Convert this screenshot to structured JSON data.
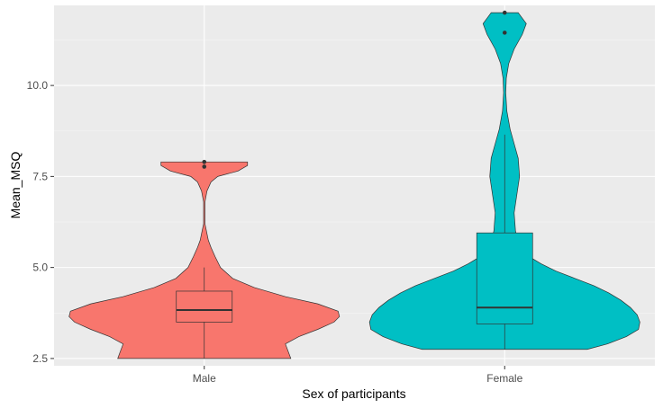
{
  "chart_data": {
    "type": "violin",
    "xlabel": "Sex of participants",
    "ylabel": "Mean_MSQ",
    "ylim": [
      2.3,
      12.2
    ],
    "y_ticks": [
      2.5,
      5.0,
      7.5,
      10.0
    ],
    "y_tick_labels": [
      "2.5",
      "5.0",
      "7.5",
      "10.0"
    ],
    "grid": true,
    "legend": "none",
    "categories": [
      "Male",
      "Female"
    ],
    "series": [
      {
        "name": "Male",
        "color": "#F8766D",
        "box": {
          "min": 2.5,
          "q1": 3.5,
          "median": 3.83,
          "q3": 4.35,
          "whisker_high": 5.0
        },
        "outliers": [
          7.9,
          7.77
        ],
        "violin_profile": [
          [
            2.5,
            0.64
          ],
          [
            2.7,
            0.62
          ],
          [
            2.9,
            0.6
          ],
          [
            3.1,
            0.7
          ],
          [
            3.3,
            0.84
          ],
          [
            3.5,
            0.96
          ],
          [
            3.65,
            1.0
          ],
          [
            3.8,
            0.99
          ],
          [
            4.0,
            0.84
          ],
          [
            4.2,
            0.6
          ],
          [
            4.45,
            0.37
          ],
          [
            4.7,
            0.21
          ],
          [
            5.0,
            0.12
          ],
          [
            5.3,
            0.08
          ],
          [
            5.55,
            0.05
          ],
          [
            5.75,
            0.03
          ],
          [
            6.2,
            0.005
          ],
          [
            6.8,
            0.005
          ],
          [
            7.1,
            0.02
          ],
          [
            7.35,
            0.05
          ],
          [
            7.5,
            0.1
          ],
          [
            7.65,
            0.25
          ],
          [
            7.8,
            0.32
          ],
          [
            7.9,
            0.32
          ]
        ]
      },
      {
        "name": "Female",
        "color": "#00BFC4",
        "box": {
          "min": 2.75,
          "q1": 3.45,
          "median": 3.9,
          "q3": 5.95,
          "whisker_high": 8.65
        },
        "outliers": [
          11.45,
          12.0
        ],
        "violin_profile": [
          [
            2.75,
            0.61
          ],
          [
            2.9,
            0.76
          ],
          [
            3.1,
            0.9
          ],
          [
            3.3,
            0.99
          ],
          [
            3.5,
            1.0
          ],
          [
            3.7,
            0.98
          ],
          [
            3.9,
            0.93
          ],
          [
            4.1,
            0.86
          ],
          [
            4.3,
            0.77
          ],
          [
            4.5,
            0.66
          ],
          [
            4.7,
            0.52
          ],
          [
            4.9,
            0.38
          ],
          [
            5.1,
            0.27
          ],
          [
            5.3,
            0.18
          ],
          [
            5.6,
            0.11
          ],
          [
            6.0,
            0.08
          ],
          [
            6.5,
            0.07
          ],
          [
            7.0,
            0.09
          ],
          [
            7.5,
            0.11
          ],
          [
            8.0,
            0.1
          ],
          [
            8.4,
            0.07
          ],
          [
            8.8,
            0.04
          ],
          [
            9.3,
            0.016
          ],
          [
            9.8,
            0.008
          ],
          [
            10.2,
            0.012
          ],
          [
            10.6,
            0.03
          ],
          [
            11.0,
            0.07
          ],
          [
            11.4,
            0.13
          ],
          [
            11.7,
            0.16
          ],
          [
            11.9,
            0.12
          ],
          [
            12.0,
            0.1
          ]
        ]
      }
    ]
  }
}
